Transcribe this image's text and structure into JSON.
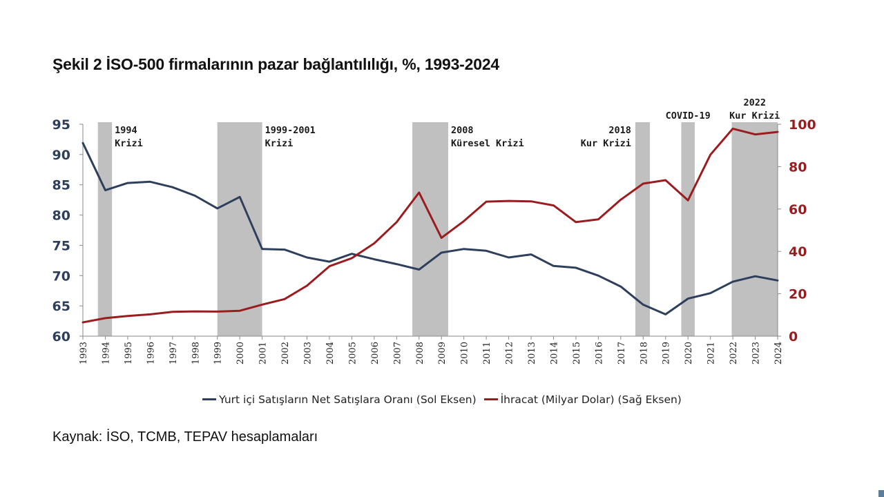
{
  "chart_data": {
    "type": "line",
    "title": "Şekil 2 İSO-500 firmalarının pazar bağlantılılığı, %, 1993-2024",
    "source": "Kaynak: İSO, TCMB, TEPAV hesaplamaları",
    "x": [
      1993,
      1994,
      1995,
      1996,
      1997,
      1998,
      1999,
      2000,
      2001,
      2002,
      2003,
      2004,
      2005,
      2006,
      2007,
      2008,
      2009,
      2010,
      2011,
      2012,
      2013,
      2014,
      2015,
      2016,
      2017,
      2018,
      2019,
      2020,
      2021,
      2022,
      2023,
      2024
    ],
    "x_tick_labels": [
      "1993",
      "1994",
      "1995",
      "1996",
      "1997",
      "1998",
      "1999",
      "2000",
      "2001",
      "2002",
      "2003",
      "2004",
      "2005",
      "2006",
      "2007",
      "2008",
      "2009",
      "2010",
      "2011",
      "2012",
      "2013",
      "2014",
      "2015",
      "2016",
      "2017",
      "2018",
      "2019",
      "2020",
      "2021",
      "2022",
      "2023",
      "2024"
    ],
    "y_left": {
      "range": [
        60,
        95
      ],
      "ticks": [
        60,
        65,
        70,
        75,
        80,
        85,
        90,
        95
      ],
      "color": "#2e3f5c"
    },
    "y_right": {
      "range": [
        0,
        100
      ],
      "ticks": [
        0,
        20,
        40,
        60,
        80,
        100
      ],
      "color": "#9b1c1f"
    },
    "grid": false,
    "legend_position": "bottom",
    "series": [
      {
        "name": "Yurt içi Satışların Net Satışlara Oranı (Sol Eksen)",
        "axis": "left",
        "color": "#2e3f5c",
        "values": [
          91.9,
          84.1,
          85.3,
          85.5,
          84.6,
          83.2,
          81.1,
          83.0,
          74.4,
          74.3,
          73.0,
          72.3,
          73.6,
          72.7,
          71.9,
          71.0,
          73.8,
          74.4,
          74.1,
          73.0,
          73.5,
          71.6,
          71.3,
          70.0,
          68.2,
          65.2,
          63.6,
          66.2,
          67.1,
          69.0,
          69.9,
          69.2
        ]
      },
      {
        "name": "İhracat (Milyar Dolar) (Sağ Eksen)",
        "axis": "right",
        "color": "#9b1c1f",
        "values": [
          6.5,
          8.5,
          9.5,
          10.3,
          11.5,
          11.7,
          11.6,
          12.0,
          14.9,
          17.5,
          23.8,
          33.0,
          36.8,
          43.8,
          53.8,
          67.8,
          46.4,
          54.3,
          63.5,
          63.8,
          63.6,
          61.7,
          53.8,
          55.1,
          64.4,
          72.0,
          73.6,
          64.1,
          85.6,
          97.9,
          95.2,
          96.4
        ]
      }
    ],
    "shaded_periods": [
      {
        "from": 1993.67,
        "to": 1994.3,
        "label_lines": [
          "1994",
          "Krizi"
        ],
        "label_side": "right"
      },
      {
        "from": 1999.0,
        "to": 2001.0,
        "label_lines": [
          "1999-2001",
          "Krizi"
        ],
        "label_side": "right"
      },
      {
        "from": 2007.7,
        "to": 2009.3,
        "label_lines": [
          "2008",
          "Küresel Krizi"
        ],
        "label_side": "right"
      },
      {
        "from": 2017.65,
        "to": 2018.3,
        "label_lines": [
          "2018",
          "Kur Krizi"
        ],
        "label_side": "left"
      },
      {
        "from": 2019.7,
        "to": 2020.3,
        "label_lines": [
          "COVID-19"
        ],
        "label_side": "above"
      },
      {
        "from": 2021.95,
        "to": 2024.0,
        "label_lines": [
          "2022",
          "Kur Krizi"
        ],
        "label_side": "above"
      }
    ],
    "shade_color": "#c0c0c0"
  }
}
